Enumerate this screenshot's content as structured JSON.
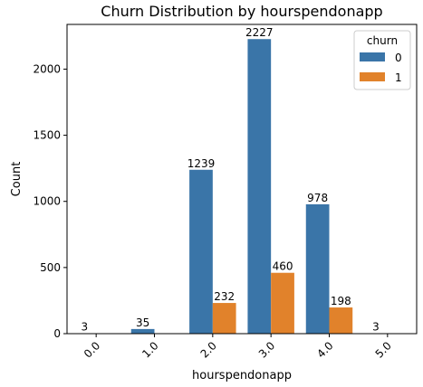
{
  "chart_data": {
    "type": "bar",
    "title": "Churn Distribution by hourspendonapp",
    "xlabel": "hourspendonapp",
    "ylabel": "Count",
    "categories": [
      "0.0",
      "1.0",
      "2.0",
      "3.0",
      "4.0",
      "5.0"
    ],
    "series": [
      {
        "name": "0",
        "color": "#3a75a8",
        "values": [
          3,
          35,
          1239,
          2227,
          978,
          3
        ]
      },
      {
        "name": "1",
        "color": "#e1822b",
        "values": [
          0,
          0,
          232,
          460,
          198,
          0
        ]
      }
    ],
    "data_labels": [
      [
        "3",
        "35",
        "1239",
        "2227",
        "978",
        "3"
      ],
      [
        "",
        "",
        "232",
        "460",
        "198",
        ""
      ]
    ],
    "ylim": [
      0,
      2338
    ],
    "yticks": [
      0,
      500,
      1000,
      1500,
      2000
    ],
    "legend": {
      "title": "churn",
      "placement": "top-right"
    },
    "grid": false
  }
}
